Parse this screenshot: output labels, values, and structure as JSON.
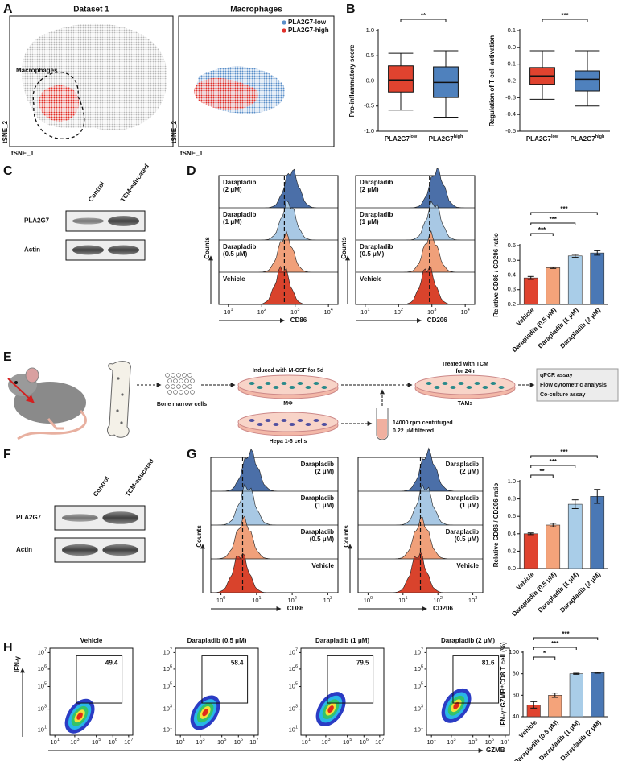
{
  "panel_labels": [
    "A",
    "B",
    "C",
    "D",
    "E",
    "F",
    "G",
    "H"
  ],
  "panel_a": {
    "plots": [
      {
        "title": "Dataset 1",
        "annotation": "Macrophages",
        "y_label": "tSNE_2",
        "x_label": "tSNE_1"
      },
      {
        "title": "Macrophages",
        "legend": [
          {
            "name": "PLA2G7-low",
            "color": "#5b8fc9"
          },
          {
            "name": "PLA2G7-high",
            "color": "#e0302a"
          }
        ],
        "y_label": "tSNE_2",
        "x_label": "tSNE_1"
      }
    ]
  },
  "panel_c": {
    "columns": [
      "Control",
      "TCM-educated"
    ],
    "rows": [
      "PLA2G7",
      "Actin"
    ]
  },
  "panel_d": {
    "conditions": [
      [
        "Darapladib",
        "(2 μM)"
      ],
      [
        "Darapladib",
        "(1 μM)"
      ],
      [
        "Darapladib",
        "(0.5 μM)"
      ],
      [
        "Vehicle"
      ]
    ],
    "y_label": "Counts",
    "histograms": [
      {
        "x_label": "CD86",
        "ticks": [
          {
            "base": "10",
            "exp": "1"
          },
          {
            "base": "10",
            "exp": "2"
          },
          {
            "base": "10",
            "exp": "3"
          },
          {
            "base": "10",
            "exp": "4"
          }
        ]
      },
      {
        "x_label": "CD206",
        "ticks": [
          {
            "base": "10",
            "exp": "1"
          },
          {
            "base": "10",
            "exp": "2"
          },
          {
            "base": "10",
            "exp": "3"
          },
          {
            "base": "10",
            "exp": "4"
          }
        ]
      }
    ]
  },
  "panel_e": {
    "bone_marrow": "Bone marrow cells",
    "induction": "Induced with M-CSF for 5d",
    "macrophage": "MΦ",
    "treatment": [
      "Treated with TCM",
      "for 24h"
    ],
    "tams": "TAMs",
    "tumor_cells": "Hepa 1-6 cells",
    "filtration": [
      "14000 rpm centrifuged",
      "0.22 μM filtered"
    ],
    "assays": [
      "qPCR assay",
      "Flow cytometric analysis",
      "Co-culture assay"
    ]
  },
  "panel_f": {
    "columns": [
      "Control",
      "TCM-educated"
    ],
    "rows": [
      "PLA2G7",
      "Actin"
    ]
  },
  "panel_g": {
    "conditions": [
      [
        "Darapladib",
        "(2 μM)"
      ],
      [
        "Darapladib",
        "(1 μM)"
      ],
      [
        "Darapladib",
        "(0.5 μM)"
      ],
      [
        "Vehicle"
      ]
    ],
    "y_label": "Counts",
    "histograms": [
      {
        "x_label": "CD86",
        "ticks": [
          {
            "base": "10",
            "exp": "0"
          },
          {
            "base": "10",
            "exp": "1"
          },
          {
            "base": "10",
            "exp": "2"
          },
          {
            "base": "10",
            "exp": "3"
          }
        ]
      },
      {
        "x_label": "CD206",
        "ticks": [
          {
            "base": "10",
            "exp": "0"
          },
          {
            "base": "10",
            "exp": "1"
          },
          {
            "base": "10",
            "exp": "2"
          },
          {
            "base": "10",
            "exp": "3"
          }
        ]
      }
    ]
  },
  "panel_h": {
    "y_label": "IFN-γ",
    "x_label": "GZMB",
    "ticks": [
      {
        "base": "10",
        "exp": "1"
      },
      {
        "base": "10",
        "exp": "3"
      },
      {
        "base": "10",
        "exp": "5"
      },
      {
        "base": "10",
        "exp": "6"
      },
      {
        "base": "10",
        "exp": "7"
      }
    ],
    "plots": [
      {
        "title": "Vehicle",
        "gate": 49.4
      },
      {
        "title": "Darapladib (0.5 μM)",
        "gate": 58.4
      },
      {
        "title": "Darapladib (1 μM)",
        "gate": 79.5
      },
      {
        "title": "Darapladib (2 μM)",
        "gate": 81.6
      }
    ]
  },
  "chart_data": [
    {
      "type": "box",
      "y_label": "Pro-inflammatory score",
      "categories": [
        "PLA2G7low",
        "PLA2G7high"
      ],
      "colors": [
        "#e0432f",
        "#4f81bd"
      ],
      "boxes": [
        {
          "whisker_low": -0.58,
          "q1": -0.22,
          "median": 0.02,
          "q3": 0.3,
          "whisker_high": 0.55
        },
        {
          "whisker_low": -0.72,
          "q1": -0.33,
          "median": -0.03,
          "q3": 0.28,
          "whisker_high": 0.6
        }
      ],
      "ylim": [
        -1.0,
        1.0
      ],
      "yticks": [
        {
          "value": -1.0,
          "label": "-1.0"
        },
        -0.5,
        {
          "value": 0,
          "label": "0.0"
        },
        0.5,
        {
          "value": 1.0,
          "label": "1.0"
        }
      ],
      "significance": [
        "**"
      ]
    },
    {
      "type": "box",
      "y_label": "Regulation of T cell activation",
      "categories": [
        "PLA2G7low",
        "PLA2G7high"
      ],
      "colors": [
        "#e0432f",
        "#4f81bd"
      ],
      "boxes": [
        {
          "whisker_low": -0.31,
          "q1": -0.22,
          "median": -0.17,
          "q3": -0.12,
          "whisker_high": -0.02
        },
        {
          "whisker_low": -0.35,
          "q1": -0.26,
          "median": -0.19,
          "q3": -0.14,
          "whisker_high": -0.02
        }
      ],
      "ylim": [
        -0.5,
        0.1
      ],
      "yticks": [
        -0.5,
        -0.4,
        -0.3,
        -0.2,
        -0.1,
        {
          "value": 0,
          "label": "0.0"
        },
        0.1
      ],
      "significance": [
        "***"
      ]
    },
    {
      "type": "bar",
      "y_label": "Relative CD86 / CD206  ratio",
      "categories": [
        "Vehicle",
        "Darapladib (0.5 μM)",
        "Darapladib (1 μM)",
        "Darapladib (2 μM)"
      ],
      "values": [
        0.38,
        0.45,
        0.53,
        0.55
      ],
      "errors": [
        0.01,
        0.005,
        0.01,
        0.015
      ],
      "colors": [
        "#e0432f",
        "#f4a37a",
        "#a9cde8",
        "#4a78b5"
      ],
      "ylim": [
        0.2,
        0.6
      ],
      "yticks": [
        0.2,
        0.3,
        0.4,
        0.5,
        0.6
      ],
      "significance": [
        "***",
        "***",
        "***"
      ]
    },
    {
      "type": "bar",
      "y_label": "Relative CD86 / CD206  ratio",
      "categories": [
        "Vehicle",
        "Darapladib (0.5 μM)",
        "Darapladib (1 μM)",
        "Darapladib (2 μM)"
      ],
      "values": [
        0.4,
        0.5,
        0.74,
        0.83
      ],
      "errors": [
        0.01,
        0.02,
        0.05,
        0.08
      ],
      "colors": [
        "#e0432f",
        "#f4a37a",
        "#a9cde8",
        "#4a78b5"
      ],
      "ylim": [
        0,
        1.0
      ],
      "yticks": [
        {
          "value": 0,
          "label": "0.0"
        },
        0.2,
        0.4,
        0.6,
        0.8,
        {
          "value": 1.0,
          "label": "1.0"
        }
      ],
      "significance": [
        "**",
        "***",
        "***"
      ]
    },
    {
      "type": "bar",
      "y_label": "IFN-γ⁺GZMB⁺CD8 T cell (%)",
      "categories": [
        "Vehicle",
        "Darapladib (0.5 μM)",
        "Darapladib (1 μM)",
        "Darapladib (2 μM)"
      ],
      "values": [
        51,
        60,
        80,
        81
      ],
      "errors": [
        3,
        2,
        0.5,
        0.5
      ],
      "colors": [
        "#e0432f",
        "#f4a37a",
        "#a9cde8",
        "#4a78b5"
      ],
      "ylim": [
        40,
        100
      ],
      "yticks": [
        40,
        60,
        80,
        100
      ],
      "significance": [
        "*",
        "***",
        "***"
      ]
    }
  ]
}
